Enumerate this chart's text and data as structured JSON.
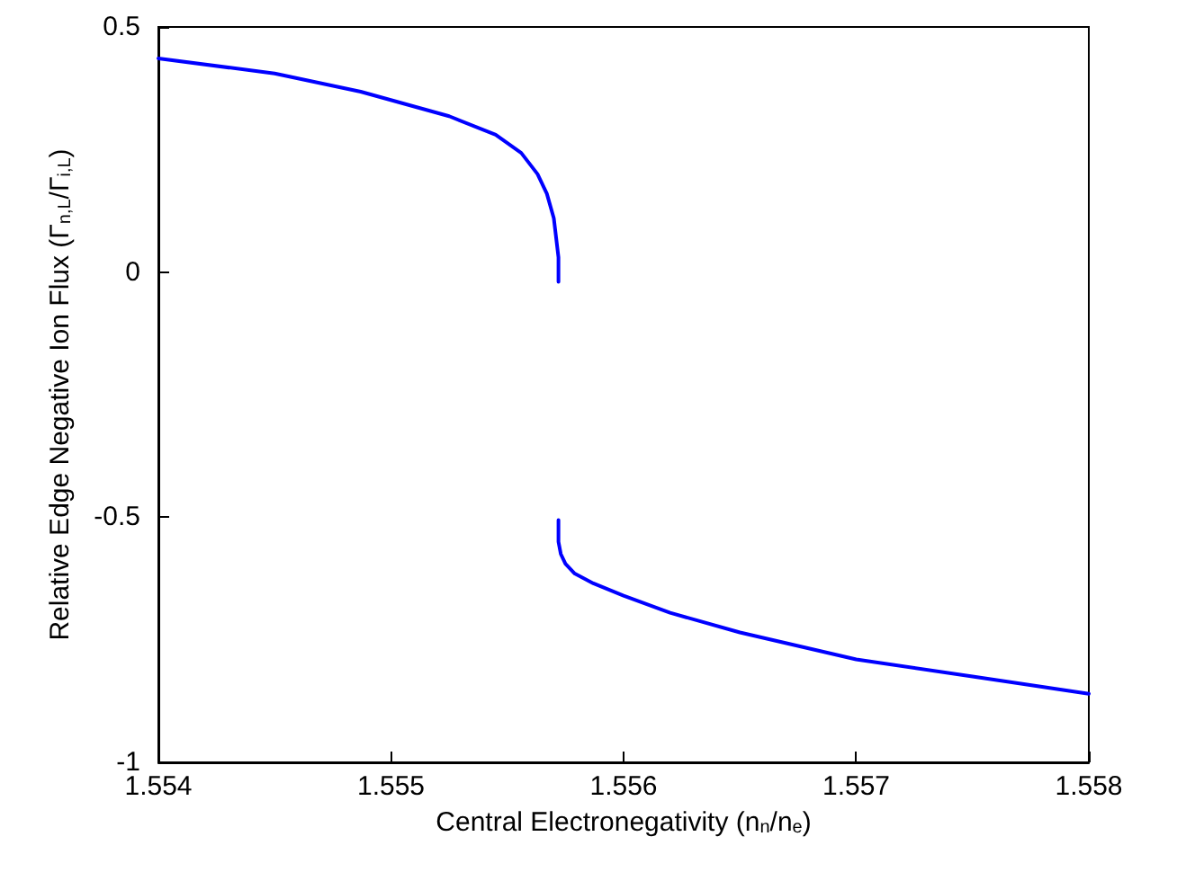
{
  "chart_data": {
    "type": "line",
    "xlabel": "Central Electronegativity (n$_{n}$/n$_{e}$)",
    "ylabel": "Relative Edge Negative Ion Flux (Γ$_{n,L}$/Γ$_{i,L}$)",
    "xlim": [
      1.554,
      1.558
    ],
    "xticks": [
      1.554,
      1.555,
      1.556,
      1.557,
      1.558
    ],
    "ylim": [
      -1,
      0.5
    ],
    "yticks": [
      -1,
      -0.5,
      0,
      0.5
    ],
    "marker": "none",
    "line_style": "solid",
    "series": [
      {
        "color": "#0000ff",
        "x": [
          1.554,
          1.5545,
          1.55487,
          1.55525,
          1.55545,
          1.55556,
          1.55563,
          1.55567,
          1.5557,
          1.55571,
          1.55572,
          1.55572
        ],
        "values": [
          0.436,
          0.405,
          0.368,
          0.318,
          0.28,
          0.243,
          0.2,
          0.16,
          0.11,
          0.07,
          0.03,
          -0.02
        ]
      },
      {
        "color": "#0000ff",
        "x": [
          1.55572,
          1.55572,
          1.55573,
          1.55575,
          1.55579,
          1.55587,
          1.556,
          1.5562,
          1.5565,
          1.557,
          1.5575,
          1.558
        ],
        "values": [
          -0.506,
          -0.55,
          -0.575,
          -0.595,
          -0.615,
          -0.635,
          -0.66,
          -0.695,
          -0.735,
          -0.79,
          -0.825,
          -0.86
        ]
      }
    ]
  }
}
